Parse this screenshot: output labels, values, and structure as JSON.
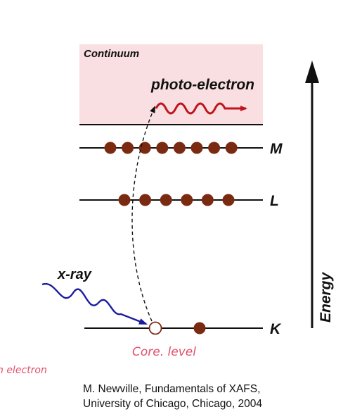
{
  "labels": {
    "continuum": "Continuum",
    "photo_electron": "photo-electron",
    "level_m": "M",
    "level_l": "L",
    "level_k": "K",
    "energy": "Energy",
    "xray": "x-ray",
    "core_level_note": "Core. level",
    "electron_note": "n electron"
  },
  "levels": {
    "M": {
      "electrons": 8
    },
    "L": {
      "electrons": 6
    },
    "K": {
      "electrons": 1,
      "core_holes": 1
    }
  },
  "citation": {
    "line1": "M. Newville, Fundamentals of XAFS,",
    "line2": "University of Chicago, Chicago, 2004"
  },
  "colors": {
    "continuum_fill": "#f9dfe1",
    "electron": "#7b2a12",
    "photo_electron_wave": "#c0141c",
    "xray_wave": "#1c1ca0",
    "handwriting": "#e0506a",
    "lines": "#111111"
  }
}
